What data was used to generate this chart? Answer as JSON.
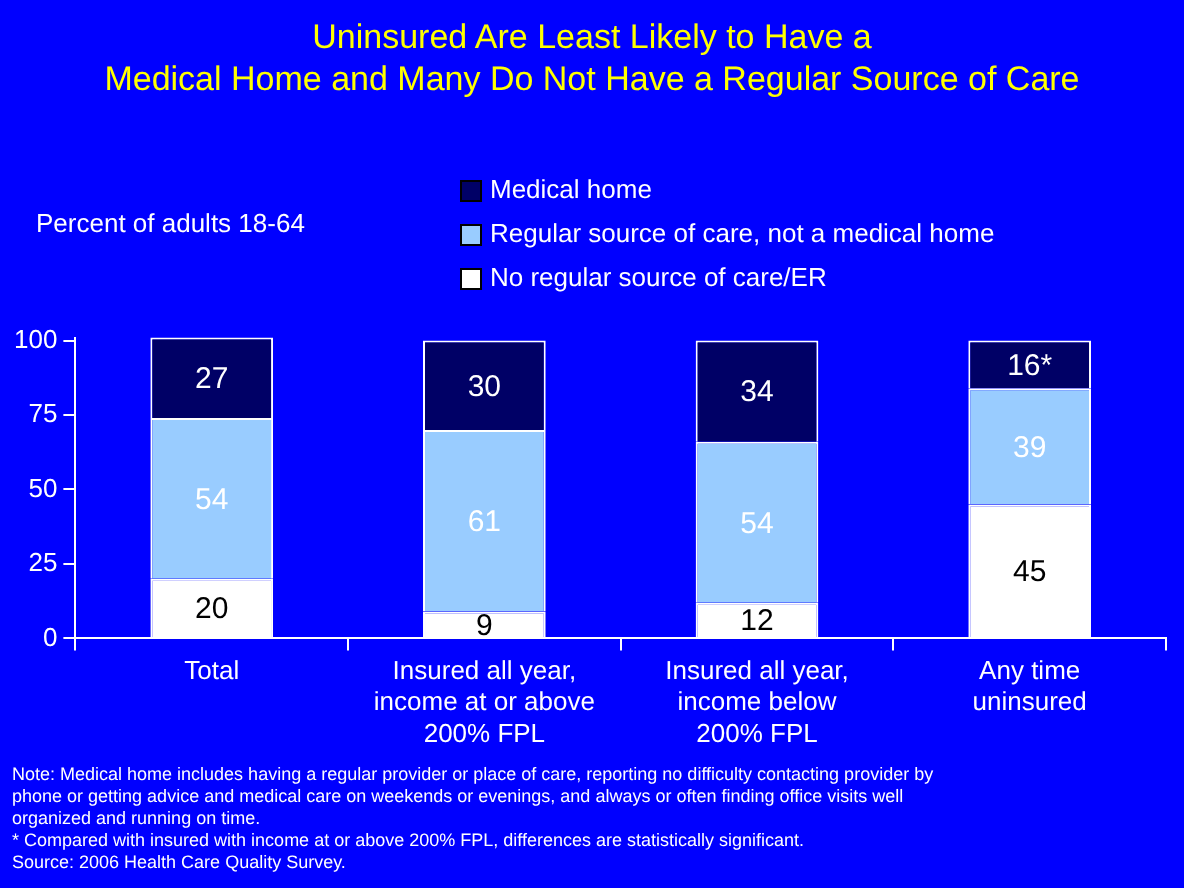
{
  "chart_data": {
    "type": "bar",
    "title": "Uninsured Are Least Likely to Have a\nMedical Home and Many Do Not Have a Regular Source of Care",
    "ylabel": "Percent of adults 18-64",
    "categories": [
      "Total",
      "Insured all year,\nincome at or above\n200% FPL",
      "Insured all year,\nincome below\n200% FPL",
      "Any time\nuninsured"
    ],
    "stacked": true,
    "series": [
      {
        "name": "No regular source of care/ER",
        "color": "#ffffff",
        "values": [
          20,
          9,
          12,
          45
        ],
        "value_labels": [
          "20",
          "9",
          "12",
          "45"
        ]
      },
      {
        "name": "Regular source of care, not a medical home",
        "color": "#99ccff",
        "values": [
          54,
          61,
          54,
          39
        ],
        "value_labels": [
          "54",
          "61",
          "54",
          "39"
        ]
      },
      {
        "name": "Medical home",
        "color": "#000066",
        "values": [
          27,
          30,
          34,
          16
        ],
        "value_labels": [
          "27",
          "30",
          "34",
          "16*"
        ]
      }
    ],
    "ylim": [
      0,
      101
    ],
    "yticks": [
      0,
      25,
      50,
      75,
      100
    ],
    "grid": false,
    "legend": "top",
    "annotations": [
      "Note: Medical home includes having a regular provider or place of care, reporting no difficulty contacting provider by phone or getting advice and medical care on weekends or evenings, and always or often finding office visits well organized and running on time.",
      "* Compared with insured with income at or above 200% FPL, differences are statistically significant.",
      "Source: 2006 Health Care Quality Survey."
    ]
  }
}
